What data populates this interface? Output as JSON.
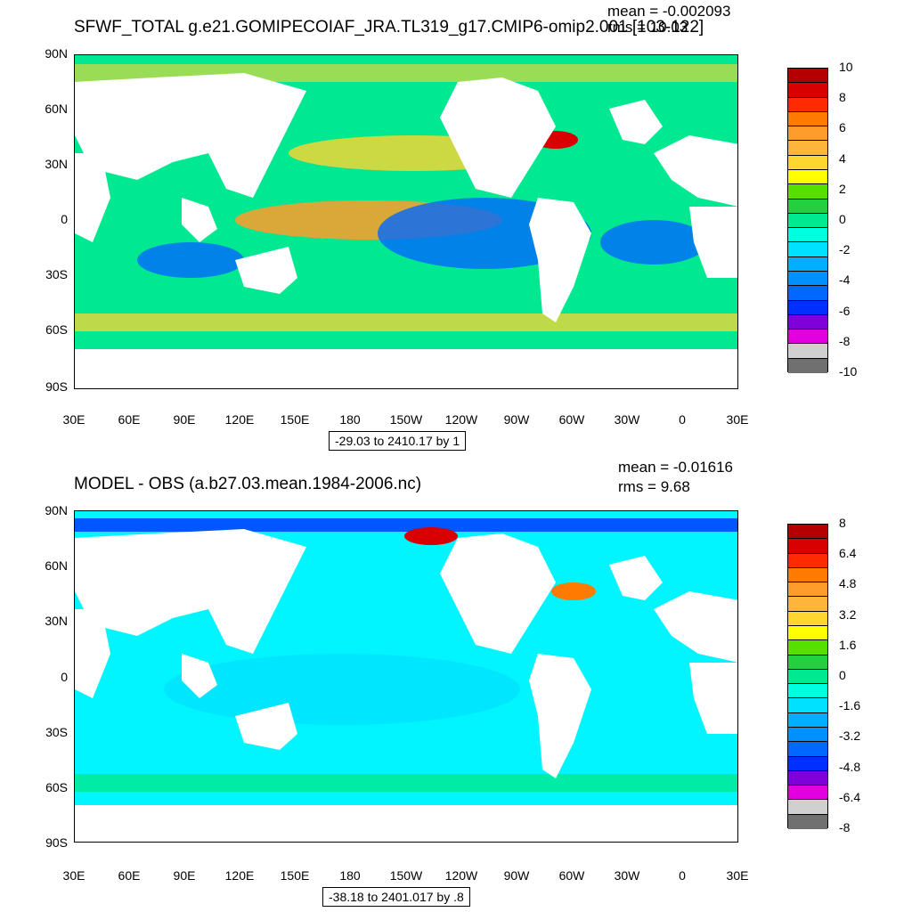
{
  "panels": [
    {
      "title": "SFWF_TOTAL g.e21.GOMIPECOIAF_JRA.TL319_g17.CMIP6-omip2.001 [103-122]",
      "mean_text": "mean = -0.002093",
      "rms_text": "rms = 10.03",
      "contour_info": "-29.03 to 2410.17 by 1",
      "colorbar": {
        "labels": [
          "10",
          "8",
          "6",
          "4",
          "2",
          "0",
          "-2",
          "-4",
          "-6",
          "-8",
          "-10"
        ],
        "colors": [
          "#b40000",
          "#d80000",
          "#ff2a00",
          "#ff7a00",
          "#ff9c2a",
          "#ffb43c",
          "#ffd530",
          "#ffff00",
          "#55e000",
          "#22d040",
          "#00e890",
          "#00ffe0",
          "#00e0ff",
          "#00b0ff",
          "#0090ff",
          "#0068ff",
          "#0030ff",
          "#7f00d8",
          "#e000e0",
          "#d0d0d0",
          "#707070"
        ]
      }
    },
    {
      "title": "MODEL - OBS (a.b27.03.mean.1984-2006.nc)",
      "mean_text": "mean = -0.01616",
      "rms_text": "rms = 9.68",
      "contour_info": "-38.18 to 2401.017 by .8",
      "colorbar": {
        "labels": [
          "8",
          "6.4",
          "4.8",
          "3.2",
          "1.6",
          "0",
          "-1.6",
          "-3.2",
          "-4.8",
          "-6.4",
          "-8"
        ],
        "colors": [
          "#b40000",
          "#d80000",
          "#ff2a00",
          "#ff7a00",
          "#ff9c2a",
          "#ffb43c",
          "#ffd530",
          "#ffff00",
          "#55e000",
          "#22d040",
          "#00e890",
          "#00ffe0",
          "#00e0ff",
          "#00b0ff",
          "#0090ff",
          "#0068ff",
          "#0030ff",
          "#7f00d8",
          "#e000e0",
          "#d0d0d0",
          "#707070"
        ]
      }
    }
  ],
  "lat_labels": [
    "90N",
    "60N",
    "30N",
    "0",
    "30S",
    "60S",
    "90S"
  ],
  "lon_labels": [
    "30E",
    "60E",
    "90E",
    "120E",
    "150E",
    "180",
    "150W",
    "120W",
    "90W",
    "60W",
    "30W",
    "0",
    "30E"
  ],
  "colors": {
    "land": "#ffffff",
    "ocean_top": "#00e890",
    "ocean_bottom": "#00f5ff"
  }
}
